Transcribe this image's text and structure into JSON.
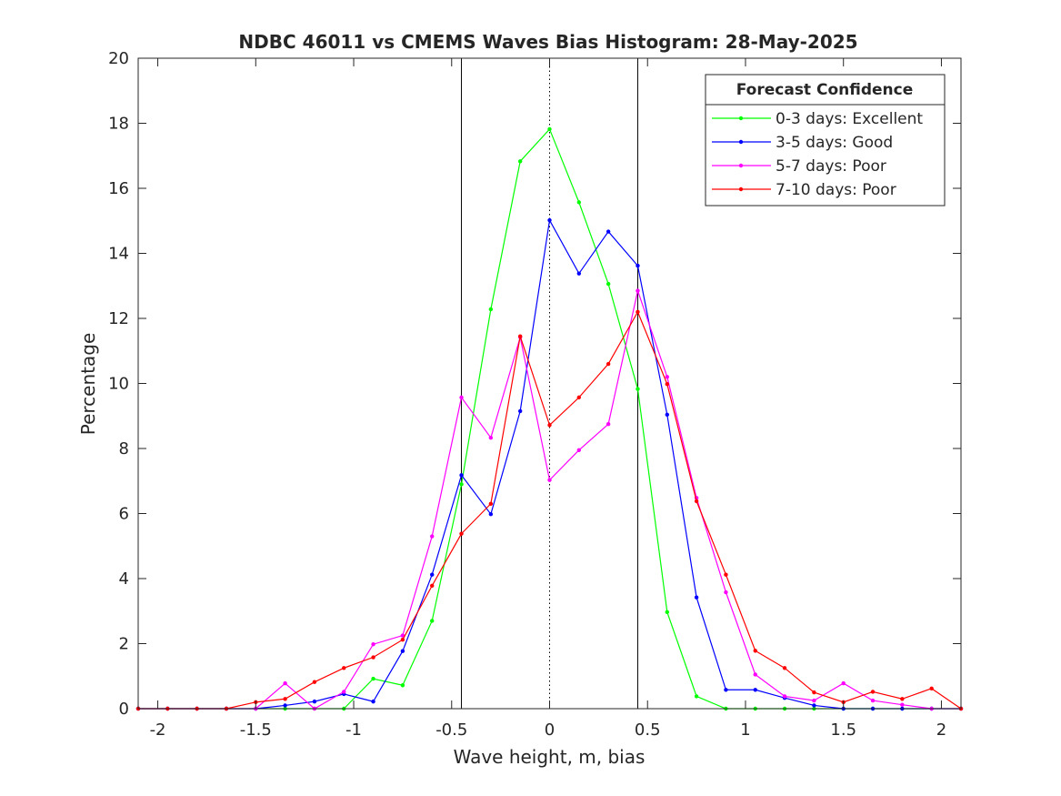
{
  "chart_data": {
    "type": "line",
    "title": "NDBC 46011 vs CMEMS Waves Bias Histogram: 28-May-2025",
    "xlabel": "Wave height, m, bias",
    "ylabel": "Percentage",
    "xlim": [
      -2.1,
      2.1
    ],
    "ylim": [
      0,
      20
    ],
    "xticks": [
      -2,
      -1.5,
      -1,
      -0.5,
      0,
      0.5,
      1,
      1.5,
      2
    ],
    "xtick_labels": [
      "-2",
      "-1.5",
      "-1",
      "-0.5",
      "0",
      "0.5",
      "1",
      "1.5",
      "2"
    ],
    "yticks": [
      0,
      2,
      4,
      6,
      8,
      10,
      12,
      14,
      16,
      18,
      20
    ],
    "ytick_labels": [
      "0",
      "2",
      "4",
      "6",
      "8",
      "10",
      "12",
      "14",
      "16",
      "18",
      "20"
    ],
    "grid": false,
    "vertical_lines": [
      {
        "x": -0.45,
        "style": "solid"
      },
      {
        "x": 0,
        "style": "dotted"
      },
      {
        "x": 0.45,
        "style": "solid"
      }
    ],
    "legend": {
      "title": "Forecast Confidence",
      "position": "top-right"
    },
    "x": [
      -2.1,
      -1.95,
      -1.8,
      -1.65,
      -1.5,
      -1.35,
      -1.2,
      -1.05,
      -0.9,
      -0.75,
      -0.6,
      -0.45,
      -0.3,
      -0.15,
      0,
      0.15,
      0.3,
      0.45,
      0.6,
      0.75,
      0.9,
      1.05,
      1.2,
      1.35,
      1.5,
      1.65,
      1.8,
      1.95,
      2.1
    ],
    "series": [
      {
        "name": "0-3 days: Excellent",
        "color": "#00ff00",
        "values": [
          0,
          0,
          0,
          0,
          0,
          0,
          0,
          0,
          0.92,
          0.72,
          2.7,
          6.9,
          12.28,
          16.83,
          17.82,
          15.57,
          13.06,
          9.83,
          2.97,
          0.38,
          0,
          0,
          0,
          0,
          0,
          0,
          0,
          0,
          0
        ]
      },
      {
        "name": "3-5 days: Good",
        "color": "#0000ff",
        "values": [
          0,
          0,
          0,
          0,
          0,
          0.1,
          0.22,
          0.45,
          0.22,
          1.77,
          4.12,
          7.18,
          5.98,
          9.15,
          15.02,
          13.38,
          14.67,
          13.62,
          9.04,
          3.42,
          0.58,
          0.58,
          0.33,
          0.1,
          0,
          0,
          0,
          0,
          0
        ]
      },
      {
        "name": "5-7 days: Poor",
        "color": "#ff00ff",
        "values": [
          0,
          0,
          0,
          0,
          0,
          0.78,
          0,
          0.52,
          1.98,
          2.25,
          5.3,
          9.57,
          8.33,
          11.42,
          7.03,
          7.95,
          8.75,
          12.85,
          10.2,
          6.48,
          3.58,
          1.05,
          0.38,
          0.25,
          0.78,
          0.25,
          0.12,
          0,
          0
        ]
      },
      {
        "name": "7-10 days: Poor",
        "color": "#ff0000",
        "values": [
          0,
          0,
          0,
          0,
          0.2,
          0.3,
          0.82,
          1.25,
          1.58,
          2.12,
          3.78,
          5.38,
          6.3,
          11.45,
          8.72,
          9.57,
          10.6,
          12.2,
          9.98,
          6.38,
          4.12,
          1.78,
          1.25,
          0.5,
          0.2,
          0.52,
          0.3,
          0.62,
          0
        ]
      }
    ]
  }
}
